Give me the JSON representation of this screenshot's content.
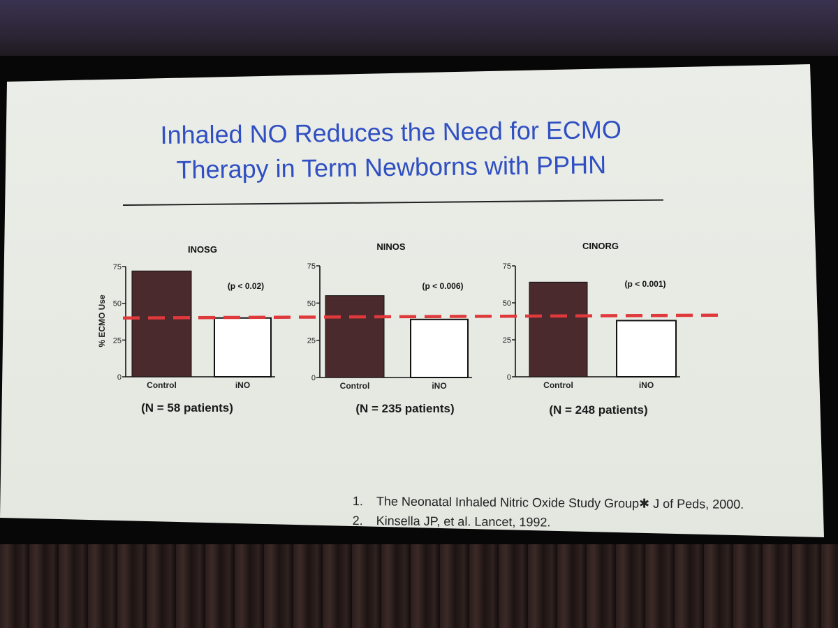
{
  "slide": {
    "title_line1": "Inhaled NO Reduces the Need for ECMO",
    "title_line2": "Therapy in Term Newborns with PPHN",
    "references": [
      {
        "num": "1.",
        "text": "The Neonatal Inhaled Nitric Oxide Study Group✱ J of Peds, 2000."
      },
      {
        "num": "2.",
        "text": "Kinsella JP, et al. Lancet, 1992."
      }
    ]
  },
  "chart_data": [
    {
      "type": "bar",
      "title": "INOSG",
      "categories": [
        "Control",
        "iNO"
      ],
      "values": [
        72,
        40
      ],
      "ylabel": "% ECMO Use",
      "ylim": [
        0,
        75
      ],
      "yticks": [
        0,
        25,
        50,
        75
      ],
      "annotation": "(p < 0.02)",
      "caption": "(N = 58 patients)",
      "reference_line": 40
    },
    {
      "type": "bar",
      "title": "NINOS",
      "categories": [
        "Control",
        "iNO"
      ],
      "values": [
        55,
        39
      ],
      "ylabel": "",
      "ylim": [
        0,
        75
      ],
      "yticks": [
        0,
        25,
        50,
        75
      ],
      "annotation": "(p < 0.006)",
      "caption": "(N = 235 patients)",
      "reference_line": 40
    },
    {
      "type": "bar",
      "title": "CINORG",
      "categories": [
        "Control",
        "iNO"
      ],
      "values": [
        64,
        38
      ],
      "ylabel": "",
      "ylim": [
        0,
        75
      ],
      "yticks": [
        0,
        25,
        50,
        75
      ],
      "annotation": "(p < 0.001)",
      "caption": "(N = 248 patients)",
      "reference_line": 40
    }
  ],
  "colors": {
    "title": "#2f4fc2",
    "control_bar": "#4a2a2d",
    "ino_bar": "#ffffff",
    "reference_line": "#e0393b"
  }
}
